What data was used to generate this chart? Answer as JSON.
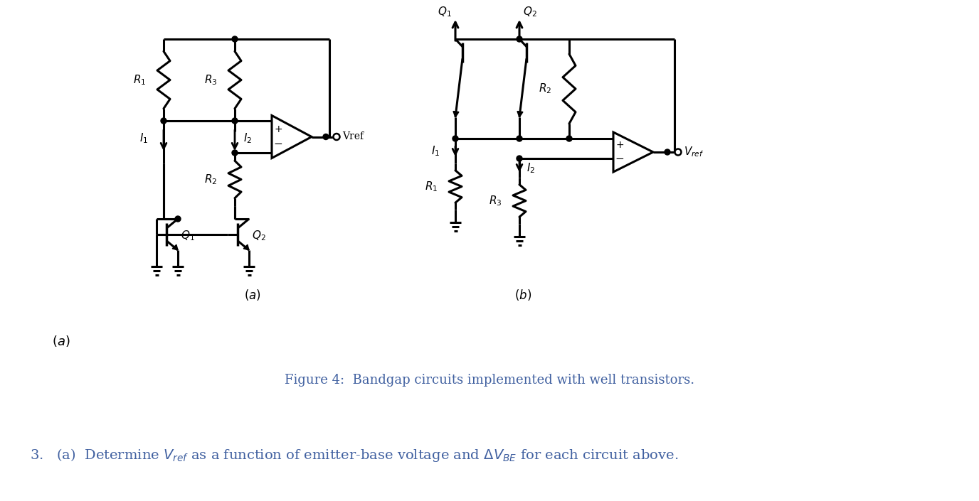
{
  "bg_color": "#ffffff",
  "text_color": "#000000",
  "blue_color": "#4060A0",
  "fig_caption": "Figure 4:  Bandgap circuits implemented with well transistors.",
  "label_a_bottom": "(a)",
  "question_text": "3.   (a)  Determine $V_{ref}$ as a function of emitter-base voltage and $\\Delta V_{BE}$ for each circuit above."
}
